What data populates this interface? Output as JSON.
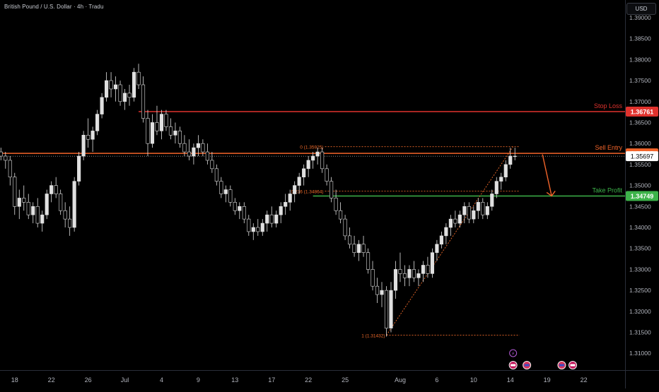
{
  "header": {
    "symbol_title": "British Pound / U.S. Dollar · 4h · Tradu",
    "currency": "USD"
  },
  "colors": {
    "background": "#000000",
    "candle": "#e0e0e0",
    "stop_loss": "#e0322d",
    "entry": "#f2642a",
    "take_profit": "#3db34a",
    "fib": "#f26b2a",
    "axis_text": "#b2b5be",
    "price_line": "#9e9e9e"
  },
  "chart_data": {
    "type": "candlestick",
    "ylim": [
      1.306,
      1.3942
    ],
    "y_ticks": [
      "1.39000",
      "1.38500",
      "1.38000",
      "1.37500",
      "1.37000",
      "1.36500",
      "1.36000",
      "1.35500",
      "1.35000",
      "1.34500",
      "1.34000",
      "1.33500",
      "1.33000",
      "1.32500",
      "1.32000",
      "1.31500",
      "1.31000"
    ],
    "y_tick_values": [
      1.39,
      1.385,
      1.38,
      1.375,
      1.37,
      1.365,
      1.36,
      1.355,
      1.35,
      1.345,
      1.34,
      1.335,
      1.33,
      1.325,
      1.32,
      1.315,
      1.31
    ],
    "x_labels": [
      "18",
      "22",
      "26",
      "Jul",
      "4",
      "9",
      "13",
      "17",
      "22",
      "25",
      "Aug",
      "6",
      "10",
      "14",
      "19",
      "22"
    ],
    "x_label_positions": [
      0,
      4,
      8,
      12,
      16,
      20,
      24,
      28,
      32,
      36,
      42,
      46,
      50,
      54,
      58,
      62
    ],
    "x_range": [
      -1.6,
      66.5
    ],
    "candles": [
      [
        -1.5,
        1.358,
        1.359,
        1.356,
        1.357
      ],
      [
        -1.0,
        1.357,
        1.358,
        1.354,
        1.356
      ],
      [
        -0.5,
        1.356,
        1.357,
        1.35,
        1.352
      ],
      [
        0.0,
        1.352,
        1.353,
        1.343,
        1.345
      ],
      [
        0.5,
        1.345,
        1.349,
        1.342,
        1.347
      ],
      [
        1.0,
        1.347,
        1.35,
        1.344,
        1.346
      ],
      [
        1.5,
        1.346,
        1.348,
        1.342,
        1.343
      ],
      [
        2.0,
        1.343,
        1.346,
        1.341,
        1.345
      ],
      [
        2.5,
        1.345,
        1.347,
        1.34,
        1.341
      ],
      [
        3.0,
        1.341,
        1.344,
        1.339,
        1.343
      ],
      [
        3.5,
        1.343,
        1.349,
        1.342,
        1.348
      ],
      [
        4.0,
        1.348,
        1.351,
        1.346,
        1.35
      ],
      [
        4.5,
        1.35,
        1.352,
        1.347,
        1.348
      ],
      [
        5.0,
        1.348,
        1.349,
        1.343,
        1.344
      ],
      [
        5.5,
        1.344,
        1.346,
        1.34,
        1.342
      ],
      [
        6.0,
        1.342,
        1.345,
        1.338,
        1.34
      ],
      [
        6.5,
        1.34,
        1.352,
        1.339,
        1.351
      ],
      [
        7.0,
        1.351,
        1.358,
        1.35,
        1.357
      ],
      [
        7.5,
        1.357,
        1.363,
        1.356,
        1.362
      ],
      [
        8.0,
        1.362,
        1.366,
        1.359,
        1.361
      ],
      [
        8.5,
        1.361,
        1.364,
        1.358,
        1.363
      ],
      [
        9.0,
        1.363,
        1.368,
        1.362,
        1.367
      ],
      [
        9.5,
        1.367,
        1.372,
        1.366,
        1.371
      ],
      [
        10.0,
        1.371,
        1.377,
        1.37,
        1.375
      ],
      [
        10.5,
        1.375,
        1.377,
        1.371,
        1.373
      ],
      [
        11.0,
        1.373,
        1.376,
        1.37,
        1.374
      ],
      [
        11.5,
        1.374,
        1.375,
        1.369,
        1.37
      ],
      [
        12.0,
        1.37,
        1.373,
        1.368,
        1.372
      ],
      [
        12.5,
        1.372,
        1.374,
        1.369,
        1.371
      ],
      [
        13.0,
        1.371,
        1.378,
        1.37,
        1.377
      ],
      [
        13.5,
        1.377,
        1.379,
        1.373,
        1.374
      ],
      [
        14.0,
        1.374,
        1.376,
        1.365,
        1.366
      ],
      [
        14.5,
        1.366,
        1.368,
        1.357,
        1.36
      ],
      [
        15.0,
        1.36,
        1.367,
        1.359,
        1.365
      ],
      [
        15.5,
        1.365,
        1.369,
        1.362,
        1.363
      ],
      [
        16.0,
        1.363,
        1.368,
        1.361,
        1.367
      ],
      [
        16.5,
        1.367,
        1.368,
        1.363,
        1.364
      ],
      [
        17.0,
        1.364,
        1.366,
        1.361,
        1.362
      ],
      [
        17.5,
        1.362,
        1.365,
        1.36,
        1.363
      ],
      [
        18.0,
        1.363,
        1.364,
        1.359,
        1.36
      ],
      [
        18.5,
        1.36,
        1.362,
        1.357,
        1.358
      ],
      [
        19.0,
        1.358,
        1.361,
        1.356,
        1.357
      ],
      [
        19.5,
        1.357,
        1.36,
        1.355,
        1.359
      ],
      [
        20.0,
        1.359,
        1.362,
        1.357,
        1.36
      ],
      [
        20.5,
        1.36,
        1.361,
        1.357,
        1.358
      ],
      [
        21.0,
        1.358,
        1.36,
        1.355,
        1.356
      ],
      [
        21.5,
        1.356,
        1.358,
        1.353,
        1.354
      ],
      [
        22.0,
        1.354,
        1.355,
        1.35,
        1.351
      ],
      [
        22.5,
        1.351,
        1.352,
        1.347,
        1.348
      ],
      [
        23.0,
        1.348,
        1.35,
        1.346,
        1.349
      ],
      [
        23.5,
        1.349,
        1.35,
        1.345,
        1.346
      ],
      [
        24.0,
        1.346,
        1.347,
        1.343,
        1.344
      ],
      [
        24.5,
        1.344,
        1.346,
        1.342,
        1.345
      ],
      [
        25.0,
        1.345,
        1.346,
        1.341,
        1.342
      ],
      [
        25.5,
        1.342,
        1.343,
        1.338,
        1.339
      ],
      [
        26.0,
        1.339,
        1.341,
        1.337,
        1.34
      ],
      [
        26.5,
        1.34,
        1.342,
        1.338,
        1.339
      ],
      [
        27.0,
        1.339,
        1.342,
        1.338,
        1.341
      ],
      [
        27.5,
        1.341,
        1.344,
        1.339,
        1.343
      ],
      [
        28.0,
        1.343,
        1.345,
        1.34,
        1.341
      ],
      [
        28.5,
        1.341,
        1.344,
        1.34,
        1.343
      ],
      [
        29.0,
        1.343,
        1.346,
        1.341,
        1.345
      ],
      [
        29.5,
        1.345,
        1.348,
        1.343,
        1.346
      ],
      [
        30.0,
        1.346,
        1.349,
        1.344,
        1.348
      ],
      [
        30.5,
        1.348,
        1.351,
        1.346,
        1.35
      ],
      [
        31.0,
        1.35,
        1.353,
        1.348,
        1.352
      ],
      [
        31.5,
        1.352,
        1.355,
        1.35,
        1.354
      ],
      [
        32.0,
        1.354,
        1.357,
        1.352,
        1.356
      ],
      [
        32.5,
        1.356,
        1.358,
        1.354,
        1.357
      ],
      [
        33.0,
        1.357,
        1.359,
        1.355,
        1.358
      ],
      [
        33.5,
        1.358,
        1.359,
        1.353,
        1.354
      ],
      [
        34.0,
        1.354,
        1.355,
        1.35,
        1.351
      ],
      [
        34.5,
        1.351,
        1.352,
        1.346,
        1.347
      ],
      [
        35.0,
        1.347,
        1.349,
        1.343,
        1.344
      ],
      [
        35.5,
        1.344,
        1.346,
        1.341,
        1.342
      ],
      [
        36.0,
        1.342,
        1.343,
        1.337,
        1.338
      ],
      [
        36.5,
        1.338,
        1.34,
        1.335,
        1.336
      ],
      [
        37.0,
        1.336,
        1.338,
        1.333,
        1.334
      ],
      [
        37.5,
        1.334,
        1.337,
        1.332,
        1.336
      ],
      [
        38.0,
        1.336,
        1.338,
        1.333,
        1.334
      ],
      [
        38.5,
        1.334,
        1.335,
        1.329,
        1.33
      ],
      [
        39.0,
        1.33,
        1.332,
        1.325,
        1.326
      ],
      [
        39.5,
        1.326,
        1.328,
        1.322,
        1.324
      ],
      [
        40.0,
        1.324,
        1.327,
        1.321,
        1.325
      ],
      [
        40.5,
        1.325,
        1.326,
        1.314,
        1.316
      ],
      [
        41.0,
        1.316,
        1.327,
        1.315,
        1.325
      ],
      [
        41.5,
        1.325,
        1.332,
        1.323,
        1.33
      ],
      [
        42.0,
        1.33,
        1.334,
        1.327,
        1.329
      ],
      [
        42.5,
        1.329,
        1.331,
        1.326,
        1.328
      ],
      [
        43.0,
        1.328,
        1.331,
        1.326,
        1.33
      ],
      [
        43.5,
        1.33,
        1.332,
        1.327,
        1.328
      ],
      [
        44.0,
        1.328,
        1.33,
        1.326,
        1.329
      ],
      [
        44.5,
        1.329,
        1.332,
        1.327,
        1.331
      ],
      [
        45.0,
        1.331,
        1.333,
        1.328,
        1.329
      ],
      [
        45.5,
        1.329,
        1.335,
        1.328,
        1.334
      ],
      [
        46.0,
        1.334,
        1.337,
        1.332,
        1.336
      ],
      [
        46.5,
        1.336,
        1.339,
        1.335,
        1.338
      ],
      [
        47.0,
        1.338,
        1.341,
        1.336,
        1.34
      ],
      [
        47.5,
        1.34,
        1.343,
        1.338,
        1.342
      ],
      [
        48.0,
        1.342,
        1.344,
        1.34,
        1.341
      ],
      [
        48.5,
        1.341,
        1.344,
        1.34,
        1.343
      ],
      [
        49.0,
        1.343,
        1.346,
        1.341,
        1.345
      ],
      [
        49.5,
        1.345,
        1.346,
        1.341,
        1.342
      ],
      [
        50.0,
        1.342,
        1.345,
        1.341,
        1.344
      ],
      [
        50.5,
        1.344,
        1.347,
        1.342,
        1.346
      ],
      [
        51.0,
        1.346,
        1.347,
        1.342,
        1.343
      ],
      [
        51.5,
        1.343,
        1.346,
        1.342,
        1.345
      ],
      [
        52.0,
        1.345,
        1.349,
        1.344,
        1.348
      ],
      [
        52.5,
        1.348,
        1.352,
        1.347,
        1.351
      ],
      [
        53.0,
        1.351,
        1.353,
        1.349,
        1.352
      ],
      [
        53.5,
        1.352,
        1.356,
        1.351,
        1.355
      ],
      [
        54.0,
        1.355,
        1.359,
        1.354,
        1.357
      ],
      [
        54.5,
        1.357,
        1.359,
        1.356,
        1.357
      ]
    ],
    "current_price": 1.35697,
    "current_price_label": "1.35697",
    "levels": [
      {
        "name": "Stop Loss",
        "value": 1.36761,
        "label": "1.36761",
        "x_start": 13.5
      },
      {
        "name": "Sell Entry",
        "value": 1.35765,
        "label": "1.35765",
        "x_start": -1.6
      },
      {
        "name": "Take Profit",
        "value": 1.34749,
        "label": "1.34749",
        "x_start": 32.5
      }
    ],
    "fib": [
      {
        "label": "0 (1.35925)",
        "value": 1.35925,
        "x_start": 33.8,
        "x_end": 55.0
      },
      {
        "label": "0.236 (1.34864)",
        "value": 1.34864,
        "x_start": 33.8,
        "x_end": 55.0
      },
      {
        "label": "1 (1.31432)",
        "value": 1.31432,
        "x_start": 40.5,
        "x_end": 55.0
      }
    ],
    "fib_trend": {
      "from": [
        40.5,
        1.31432
      ],
      "to": [
        54.3,
        1.35925
      ]
    },
    "arrow": {
      "from": [
        57.5,
        1.3574
      ],
      "to": [
        58.5,
        1.3475
      ]
    },
    "event_icons": [
      {
        "x": 54.3,
        "kind": "lightning-icon"
      },
      {
        "x": 54.3,
        "kind": "flag-gb-icon"
      },
      {
        "x": 55.8,
        "kind": "flag-us-icon"
      },
      {
        "x": 59.6,
        "kind": "flag-us-icon"
      },
      {
        "x": 60.8,
        "kind": "flag-gb-icon"
      }
    ]
  }
}
